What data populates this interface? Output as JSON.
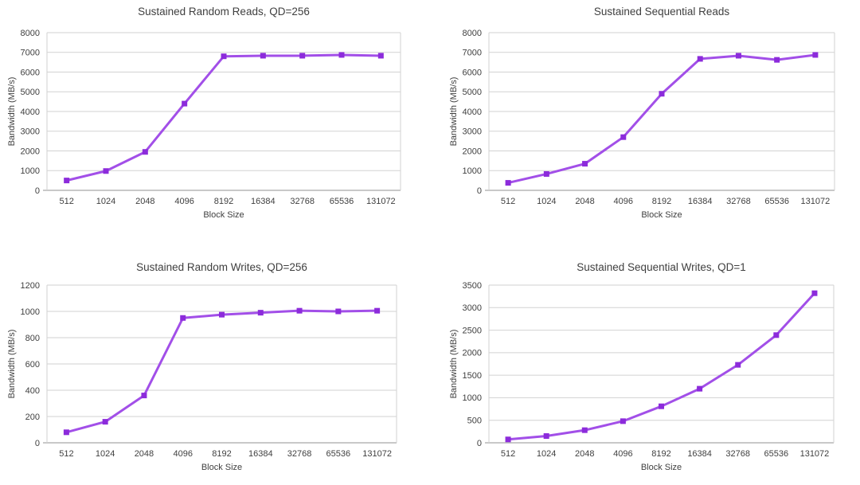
{
  "style": {
    "line_color": "#A24FE8",
    "marker_color": "#8C2BDB",
    "grid_color": "#D2D2D2",
    "axis_color": "#A6A6A6",
    "border_color": "#D2D2D2",
    "text_color": "#3F3F3F",
    "background": "#FFFFFF"
  },
  "chart_data": [
    {
      "type": "line",
      "title": "Sustained Random Reads, QD=256",
      "xlabel": "Block Size",
      "ylabel": "Bandwidth (MB/s)",
      "categories": [
        "512",
        "1024",
        "2048",
        "4096",
        "8192",
        "16384",
        "32768",
        "65536",
        "131072"
      ],
      "values": [
        500,
        980,
        1950,
        4400,
        6800,
        6830,
        6830,
        6870,
        6830
      ],
      "ylim": [
        0,
        8000
      ],
      "ytick_step": 1000,
      "grid": true,
      "legend": false,
      "marker": "square"
    },
    {
      "type": "line",
      "title": "Sustained Sequential Reads",
      "xlabel": "Block Size",
      "ylabel": "Bandwidth (MB/s)",
      "categories": [
        "512",
        "1024",
        "2048",
        "4096",
        "8192",
        "16384",
        "32768",
        "65536",
        "131072"
      ],
      "values": [
        380,
        830,
        1350,
        2700,
        4900,
        6670,
        6830,
        6620,
        6870
      ],
      "ylim": [
        0,
        8000
      ],
      "ytick_step": 1000,
      "grid": true,
      "legend": false,
      "marker": "square"
    },
    {
      "type": "line",
      "title": "Sustained Random Writes, QD=256",
      "xlabel": "Block Size",
      "ylabel": "Bandwidth (MB/s)",
      "categories": [
        "512",
        "1024",
        "2048",
        "4096",
        "8192",
        "16384",
        "32768",
        "65536",
        "131072"
      ],
      "values": [
        80,
        160,
        360,
        950,
        975,
        990,
        1005,
        1000,
        1005
      ],
      "ylim": [
        0,
        1200
      ],
      "ytick_step": 200,
      "grid": true,
      "legend": false,
      "marker": "square"
    },
    {
      "type": "line",
      "title": "Sustained Sequential Writes, QD=1",
      "xlabel": "Block Size",
      "ylabel": "Bandwidth (MB/s)",
      "categories": [
        "512",
        "1024",
        "2048",
        "4096",
        "8192",
        "16384",
        "32768",
        "65536",
        "131072"
      ],
      "values": [
        75,
        150,
        280,
        480,
        810,
        1200,
        1730,
        2390,
        3320
      ],
      "ylim": [
        0,
        3500
      ],
      "ytick_step": 500,
      "grid": true,
      "legend": false,
      "marker": "square"
    }
  ]
}
